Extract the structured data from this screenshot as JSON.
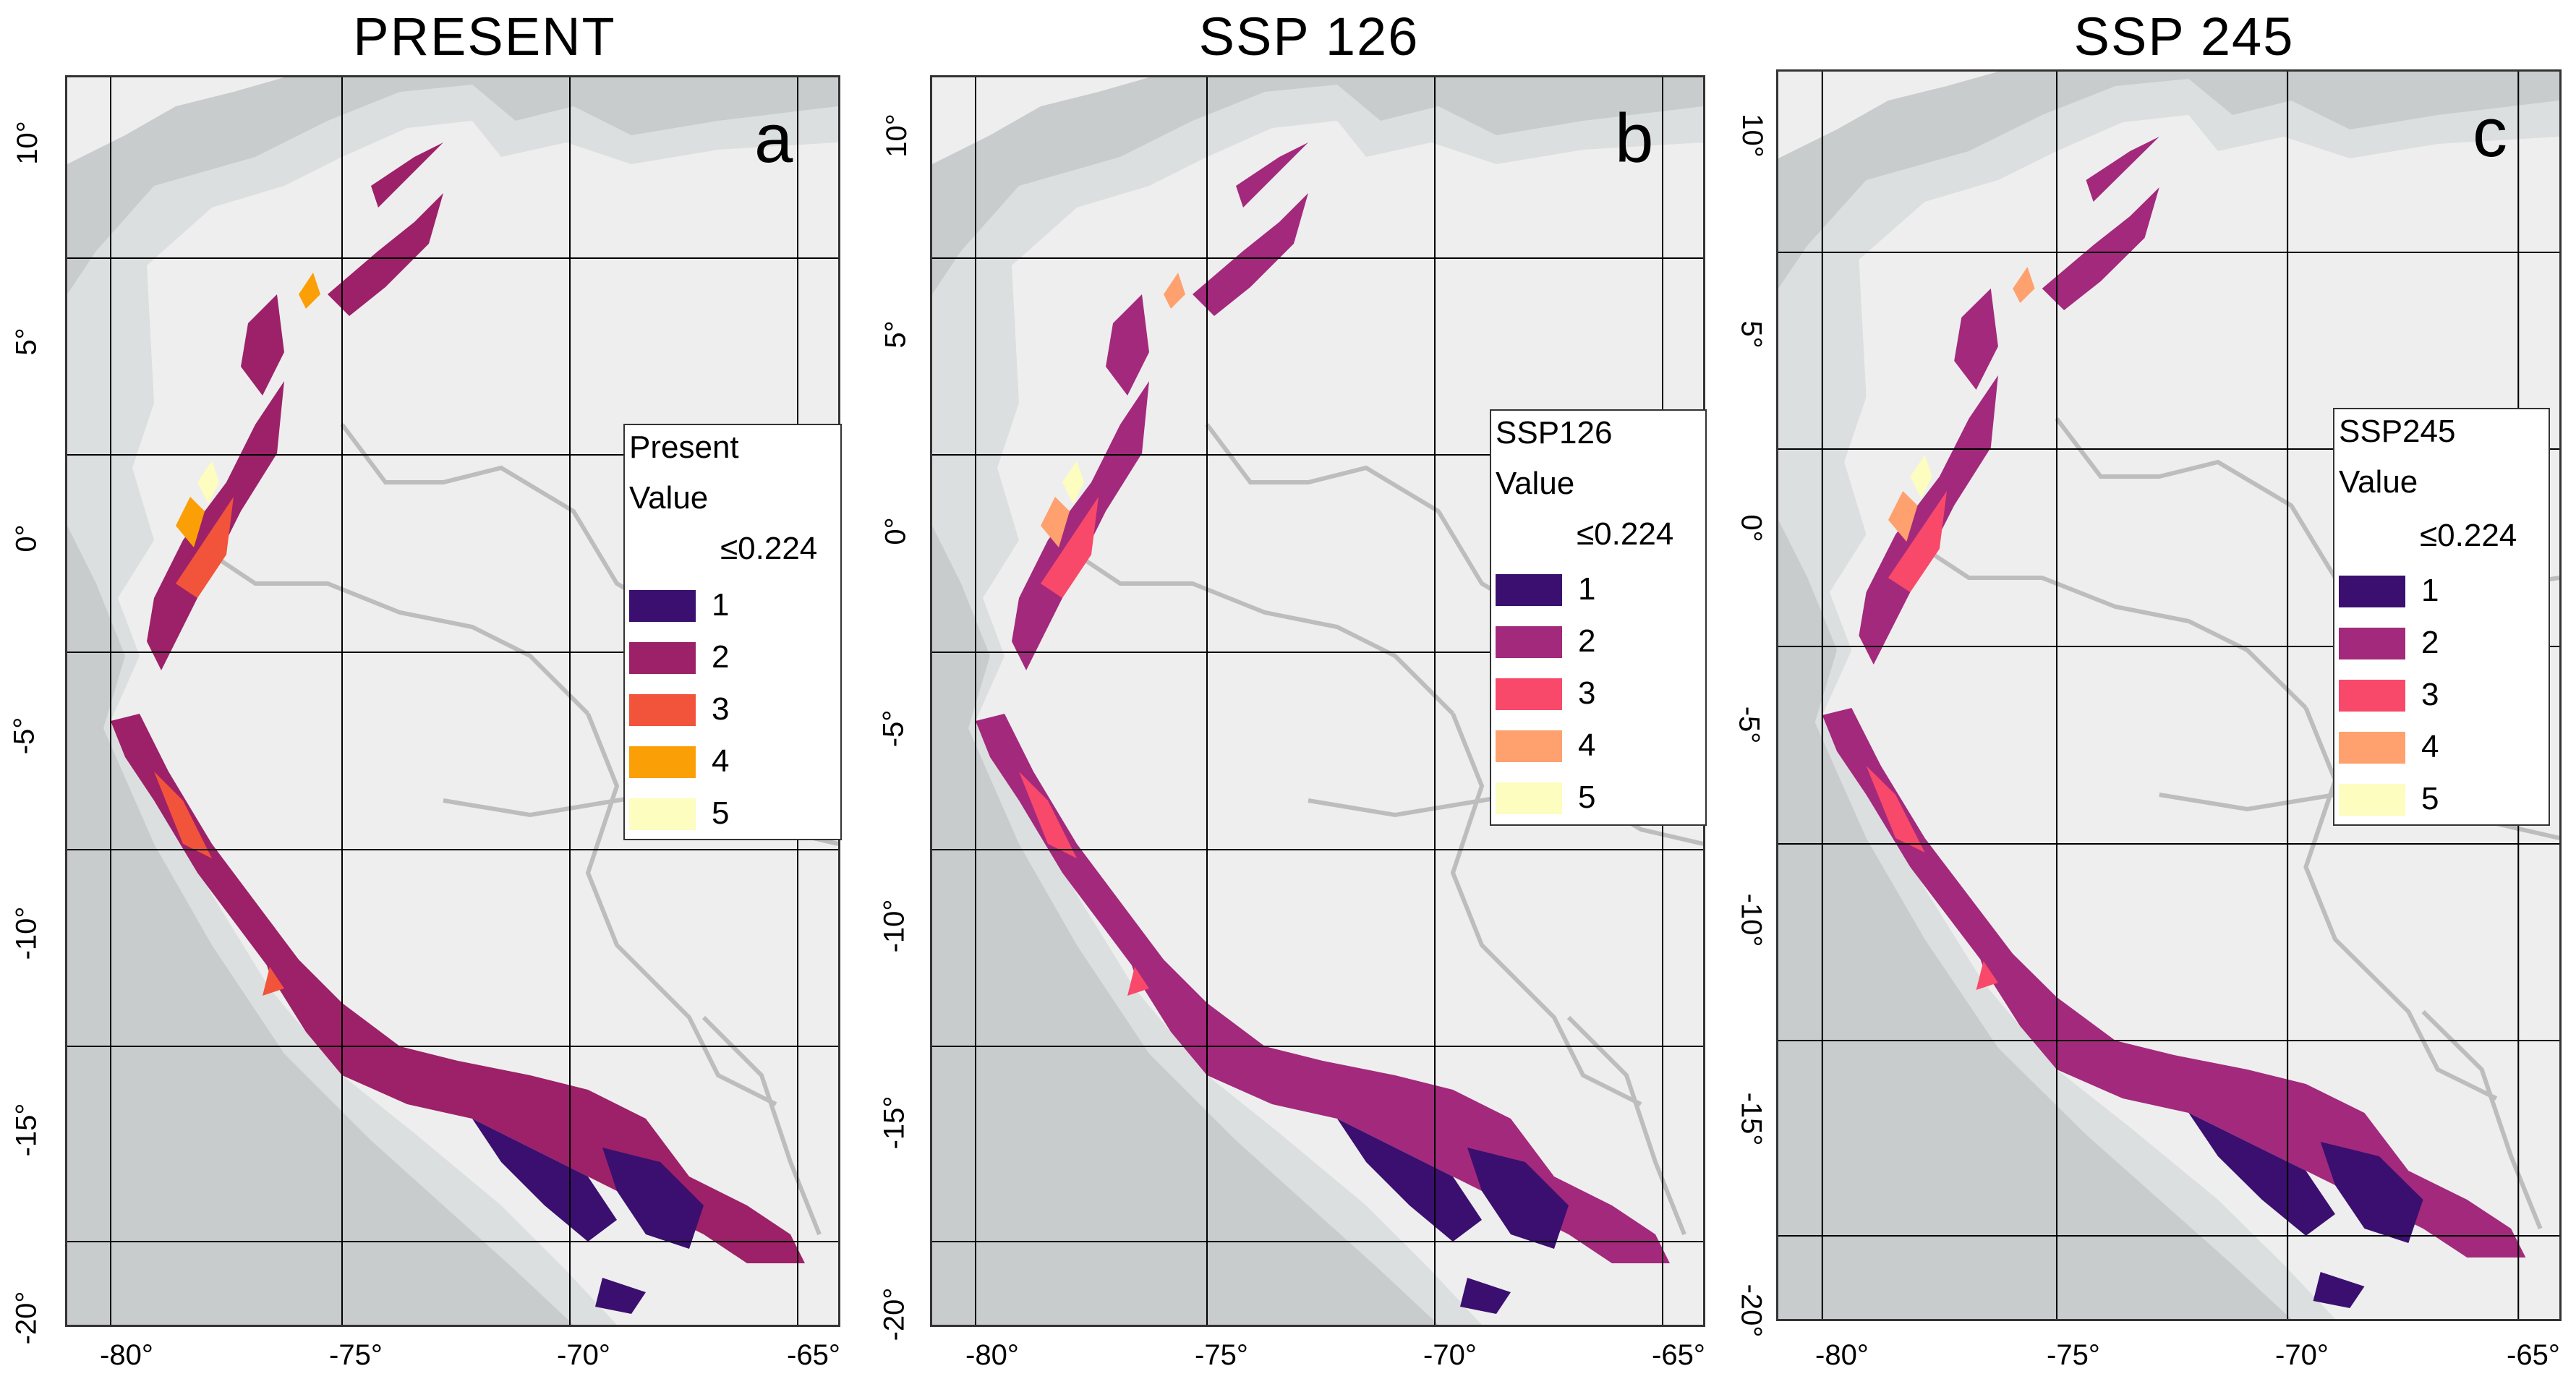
{
  "colors": {
    "ocean": "#c8cccc",
    "land": "#eeeeee",
    "shelf": "#dcdfdf",
    "border": "#bdbdbd",
    "grid": "#000000"
  },
  "axes": {
    "lat_ticks": [
      "10°",
      "5°",
      "0°",
      "-5°",
      "-10°",
      "-15°",
      "-20°"
    ],
    "lon_ticks": [
      "-80°",
      "-75°",
      "-70°",
      "-65°"
    ]
  },
  "panels": [
    {
      "id": "present",
      "title": "PRESENT",
      "letter": "a",
      "legend": {
        "title": "Present",
        "subtitle": "Value",
        "min_label": "≤0.224",
        "classes": [
          {
            "label": "1",
            "color": "#3b0f70"
          },
          {
            "label": "2",
            "color": "#9c2168"
          },
          {
            "label": "3",
            "color": "#f2533b"
          },
          {
            "label": "4",
            "color": "#fb9f07"
          },
          {
            "label": "5",
            "color": "#fcfdbf"
          }
        ]
      }
    },
    {
      "id": "ssp126",
      "title": "SSP 126",
      "letter": "b",
      "legend": {
        "title": "SSP126",
        "subtitle": "Value",
        "min_label": "≤0.224",
        "classes": [
          {
            "label": "1",
            "color": "#3b0f70"
          },
          {
            "label": "2",
            "color": "#a3297c"
          },
          {
            "label": "3",
            "color": "#f8496a"
          },
          {
            "label": "4",
            "color": "#fea16e"
          },
          {
            "label": "5",
            "color": "#fcfdbf"
          }
        ]
      }
    },
    {
      "id": "ssp245",
      "title": "SSP 245",
      "letter": "c",
      "legend": {
        "title": "SSP245",
        "subtitle": "Value",
        "min_label": "≤0.224",
        "classes": [
          {
            "label": "1",
            "color": "#3b0f70"
          },
          {
            "label": "2",
            "color": "#a3297c"
          },
          {
            "label": "3",
            "color": "#f8496a"
          },
          {
            "label": "4",
            "color": "#fea16e"
          },
          {
            "label": "5",
            "color": "#fcfdbf"
          }
        ]
      }
    }
  ]
}
